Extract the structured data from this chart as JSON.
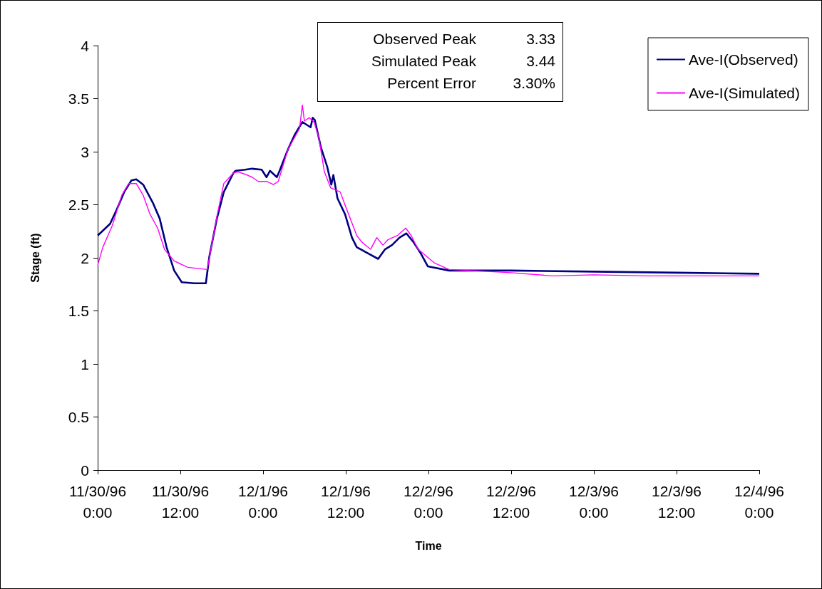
{
  "chart_data": {
    "type": "line",
    "xlabel": "Time",
    "ylabel": "Stage (ft)",
    "annotations": [
      "Observed Peak 3.33",
      "Simulated Peak 3.44",
      "Percent Error 3.30%"
    ],
    "xlim": [
      "1996-11-30T00:00",
      "1996-12-04T00:00"
    ],
    "xticks": [
      {
        "value": "1996-11-30T00:00",
        "label": "11/30/96\n0:00"
      },
      {
        "value": "1996-11-30T12:00",
        "label": "11/30/96\n12:00"
      },
      {
        "value": "1996-12-01T00:00",
        "label": "12/1/96\n0:00"
      },
      {
        "value": "1996-12-01T12:00",
        "label": "12/1/96\n12:00"
      },
      {
        "value": "1996-12-02T00:00",
        "label": "12/2/96\n0:00"
      },
      {
        "value": "1996-12-02T12:00",
        "label": "12/2/96\n12:00"
      },
      {
        "value": "1996-12-03T00:00",
        "label": "12/3/96\n0:00"
      },
      {
        "value": "1996-12-03T12:00",
        "label": "12/3/96\n12:00"
      },
      {
        "value": "1996-12-04T00:00",
        "label": "12/4/96\n0:00"
      }
    ],
    "ylim": [
      0,
      4
    ],
    "yticks": [
      0,
      0.5,
      1,
      1.5,
      2,
      2.5,
      3,
      3.5,
      4
    ],
    "grid": false,
    "legend": "top right",
    "marker": "none",
    "line_style": "solid",
    "series": [
      {
        "name": "Ave-I(Observed)",
        "color": "#000080",
        "x": [
          "1996-11-30T00:00",
          "1996-11-30T01:48",
          "1996-11-30T02:48",
          "1996-11-30T03:51",
          "1996-11-30T04:54",
          "1996-11-30T05:36",
          "1996-11-30T06:36",
          "1996-11-30T08:00",
          "1996-11-30T09:00",
          "1996-11-30T10:00",
          "1996-11-30T11:06",
          "1996-11-30T12:12",
          "1996-11-30T14:00",
          "1996-11-30T15:42",
          "1996-11-30T16:12",
          "1996-11-30T17:18",
          "1996-11-30T18:18",
          "1996-11-30T19:42",
          "1996-11-30T20:00",
          "1996-11-30T21:24",
          "1996-11-30T22:24",
          "1996-11-30T23:48",
          "1996-12-01T00:30",
          "1996-12-01T01:00",
          "1996-12-01T02:00",
          "1996-12-01T02:24",
          "1996-12-01T03:36",
          "1996-12-01T04:36",
          "1996-12-01T05:42",
          "1996-12-01T06:54",
          "1996-12-01T07:12",
          "1996-12-01T07:30",
          "1996-12-01T08:24",
          "1996-12-01T09:18",
          "1996-12-01T09:54",
          "1996-12-01T10:12",
          "1996-12-01T10:48",
          "1996-12-01T11:54",
          "1996-12-01T12:54",
          "1996-12-01T13:36",
          "1996-12-01T15:18",
          "1996-12-01T16:42",
          "1996-12-01T17:42",
          "1996-12-01T18:42",
          "1996-12-01T19:48",
          "1996-12-01T20:48",
          "1996-12-01T21:48",
          "1996-12-01T22:54",
          "1996-12-01T23:54",
          "1996-12-02T03:00",
          "1996-12-02T12:00",
          "1996-12-03T00:00",
          "1996-12-03T12:00",
          "1996-12-04T00:00"
        ],
        "values": [
          2.21,
          2.32,
          2.46,
          2.62,
          2.73,
          2.74,
          2.69,
          2.52,
          2.37,
          2.1,
          1.88,
          1.77,
          1.76,
          1.76,
          2.01,
          2.37,
          2.62,
          2.8,
          2.82,
          2.83,
          2.84,
          2.83,
          2.76,
          2.82,
          2.76,
          2.82,
          3.02,
          3.16,
          3.28,
          3.23,
          3.32,
          3.3,
          3.04,
          2.86,
          2.69,
          2.78,
          2.56,
          2.41,
          2.19,
          2.1,
          2.04,
          1.99,
          2.08,
          2.12,
          2.19,
          2.23,
          2.15,
          2.04,
          1.92,
          1.88,
          1.88,
          1.87,
          1.86,
          1.85
        ]
      },
      {
        "name": "Ave-I(Simulated)",
        "color": "#ff00ff",
        "x": [
          "1996-11-30T00:00",
          "1996-11-30T00:45",
          "1996-11-30T02:06",
          "1996-11-30T03:30",
          "1996-11-30T04:30",
          "1996-11-30T05:36",
          "1996-11-30T06:36",
          "1996-11-30T07:36",
          "1996-11-30T08:42",
          "1996-11-30T09:42",
          "1996-11-30T11:06",
          "1996-11-30T13:06",
          "1996-11-30T15:54",
          "1996-11-30T17:18",
          "1996-11-30T18:18",
          "1996-11-30T19:42",
          "1996-11-30T20:24",
          "1996-11-30T21:42",
          "1996-11-30T22:24",
          "1996-11-30T23:18",
          "1996-12-01T00:30",
          "1996-12-01T01:30",
          "1996-12-01T02:12",
          "1996-12-01T03:36",
          "1996-12-01T05:18",
          "1996-12-01T05:42",
          "1996-12-01T06:00",
          "1996-12-01T06:42",
          "1996-12-01T07:24",
          "1996-12-01T08:06",
          "1996-12-01T08:54",
          "1996-12-01T09:48",
          "1996-12-01T11:12",
          "1996-12-01T12:00",
          "1996-12-01T13:36",
          "1996-12-01T14:18",
          "1996-12-01T15:36",
          "1996-12-01T16:30",
          "1996-12-01T17:24",
          "1996-12-01T18:06",
          "1996-12-01T19:30",
          "1996-12-01T20:42",
          "1996-12-01T21:30",
          "1996-12-01T22:30",
          "1996-12-02T00:54",
          "1996-12-02T03:00",
          "1996-12-02T12:00",
          "1996-12-02T18:00",
          "1996-12-03T00:00",
          "1996-12-03T08:00",
          "1996-12-04T00:00"
        ],
        "values": [
          1.93,
          2.1,
          2.3,
          2.59,
          2.7,
          2.7,
          2.59,
          2.41,
          2.28,
          2.08,
          1.97,
          1.91,
          1.89,
          2.39,
          2.7,
          2.8,
          2.81,
          2.78,
          2.76,
          2.72,
          2.72,
          2.69,
          2.72,
          3.02,
          3.22,
          3.44,
          3.29,
          3.32,
          3.28,
          3.13,
          2.81,
          2.66,
          2.62,
          2.48,
          2.21,
          2.15,
          2.08,
          2.19,
          2.12,
          2.17,
          2.21,
          2.28,
          2.21,
          2.08,
          1.95,
          1.89,
          1.86,
          1.83,
          1.84,
          1.83,
          1.83
        ]
      }
    ]
  }
}
